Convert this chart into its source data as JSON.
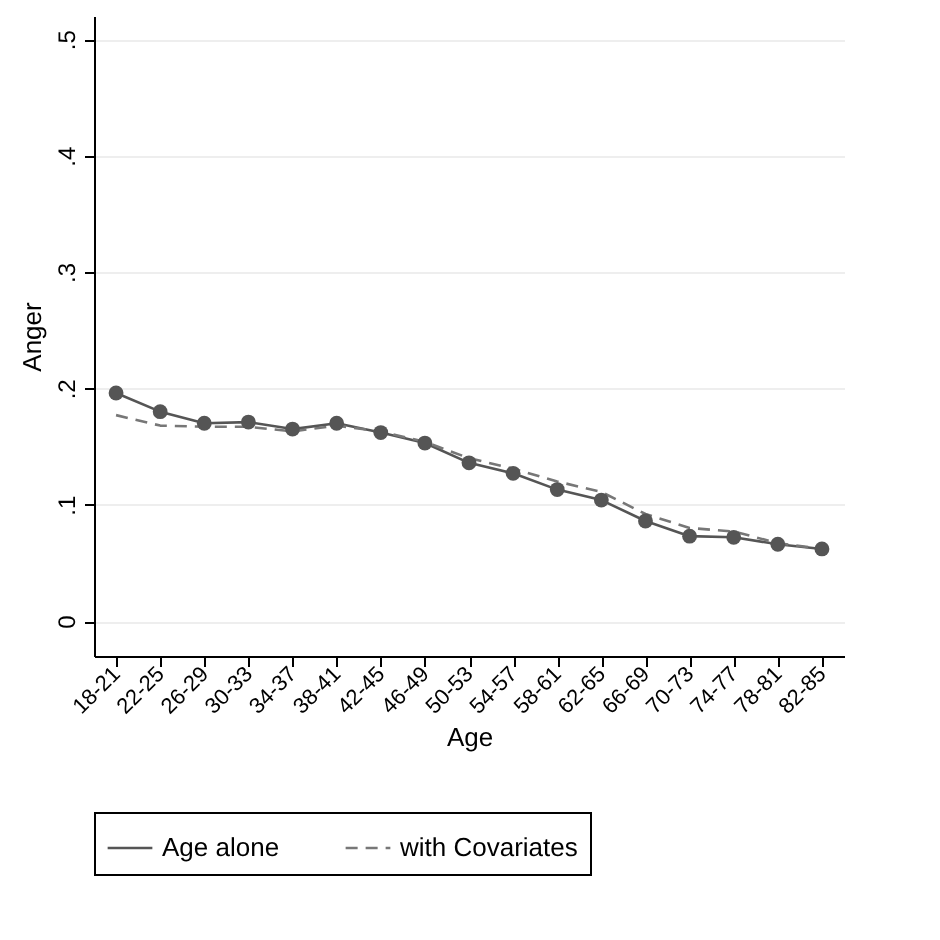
{
  "chart_data": {
    "type": "line",
    "xlabel": "Age",
    "ylabel": "Anger",
    "categories": [
      "18-21",
      "22-25",
      "26-29",
      "30-33",
      "34-37",
      "38-41",
      "42-45",
      "46-49",
      "50-53",
      "54-57",
      "58-61",
      "62-65",
      "66-69",
      "70-73",
      "74-77",
      "78-81",
      "82-85"
    ],
    "series": [
      {
        "name": "Age alone",
        "color": "#555555",
        "marker": "circle",
        "line_style": "solid",
        "values": [
          0.196,
          0.18,
          0.17,
          0.171,
          0.165,
          0.17,
          0.162,
          0.153,
          0.136,
          0.127,
          0.113,
          0.104,
          0.086,
          0.073,
          0.072,
          0.066,
          0.062
        ]
      },
      {
        "name": "with Covariates",
        "color": "#777777",
        "marker": "none",
        "line_style": "dashed",
        "values": [
          0.177,
          0.168,
          0.167,
          0.167,
          0.163,
          0.168,
          0.163,
          0.154,
          0.14,
          0.131,
          0.12,
          0.111,
          0.092,
          0.08,
          0.077,
          0.067,
          0.062
        ]
      }
    ],
    "ylim": [
      -0.03,
      0.52
    ],
    "yticks": [
      0,
      {
        "value": 0.1,
        "label": ".1"
      },
      {
        "value": 0.2,
        "label": ".2"
      },
      {
        "value": 0.3,
        "label": ".3"
      },
      {
        "value": 0.4,
        "label": ".4"
      },
      {
        "value": 0.5,
        "label": ".5"
      }
    ],
    "grid": "y",
    "legend": "bottom"
  }
}
